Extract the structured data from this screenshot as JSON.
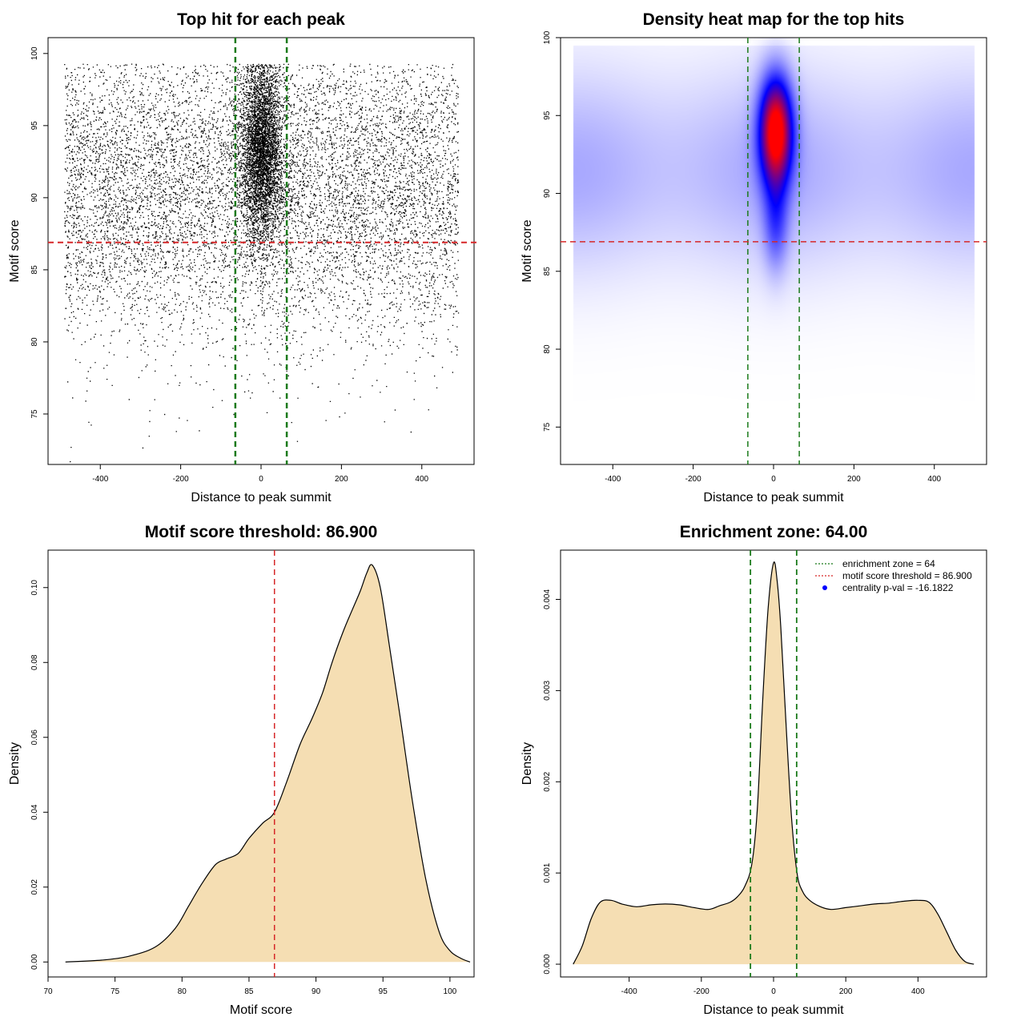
{
  "figure": {
    "colors": {
      "zone_line": "#1a7a1a",
      "threshold_line": "#d62728",
      "density_fill": "#f5deb3",
      "points": "#000000",
      "heat_low": "#ffffff",
      "heat_mid": "#0000ff",
      "heat_high": "#ff0000",
      "legend_point": "#0000ff"
    }
  },
  "chart_data": [
    {
      "id": "p1",
      "type": "scatter",
      "title": "Top hit for each peak",
      "xlabel": "Distance to peak summit",
      "ylabel": "Motif score",
      "xlim": [
        -530,
        530
      ],
      "ylim": [
        71.5,
        101.1
      ],
      "xticks": [
        -400,
        -200,
        0,
        200,
        400
      ],
      "yticks": [
        75,
        80,
        85,
        90,
        95,
        100
      ],
      "vlines": [
        -64,
        64
      ],
      "hline": 86.9,
      "point_distribution": {
        "background": {
          "count": 9000,
          "x_range": [
            -490,
            490
          ],
          "y_peak": 90.5,
          "y_sd": 5.2
        },
        "central": {
          "count": 4500,
          "x_center": 0,
          "x_sd": 26,
          "y_center": 93.2,
          "y_sd": 3.1
        }
      }
    },
    {
      "id": "p2",
      "type": "heatmap",
      "title": "Density heat map for the top hits",
      "xlabel": "Distance to peak summit",
      "ylabel": "Motif score",
      "xlim": [
        -530,
        530
      ],
      "ylim": [
        72.6,
        100
      ],
      "xticks": [
        -400,
        -200,
        0,
        200,
        400
      ],
      "yticks": [
        75,
        80,
        85,
        90,
        95,
        100
      ],
      "vlines": [
        -64,
        64
      ],
      "hline": 86.9,
      "hotspot": {
        "x": 5,
        "y": 94
      }
    },
    {
      "id": "p3",
      "type": "area",
      "title": "Motif score threshold: 86.900",
      "xlabel": "Motif score",
      "ylabel": "Density",
      "xlim": [
        70,
        101.8
      ],
      "ylim": [
        -0.004,
        0.11
      ],
      "xticks": [
        70,
        75,
        80,
        85,
        90,
        95,
        100
      ],
      "yticks": [
        0.0,
        0.02,
        0.04,
        0.06,
        0.08,
        0.1
      ],
      "ytick_labels": [
        "0.00",
        "0.02",
        "0.04",
        "0.06",
        "0.08",
        "0.10"
      ],
      "vline": 86.9,
      "x": [
        71.3,
        74.0,
        76.0,
        78.0,
        79.5,
        80.5,
        81.5,
        82.5,
        83.3,
        84.2,
        85.0,
        86.0,
        86.9,
        87.8,
        88.8,
        89.7,
        90.5,
        91.2,
        92.0,
        92.7,
        93.3,
        93.8,
        94.2,
        94.8,
        95.5,
        96.3,
        97.2,
        98.2,
        99.2,
        100.0,
        100.8,
        101.5
      ],
      "values": [
        0.0,
        0.0005,
        0.0015,
        0.004,
        0.009,
        0.015,
        0.021,
        0.026,
        0.0275,
        0.029,
        0.033,
        0.037,
        0.04,
        0.048,
        0.058,
        0.065,
        0.072,
        0.08,
        0.088,
        0.094,
        0.099,
        0.104,
        0.106,
        0.1,
        0.084,
        0.065,
        0.043,
        0.022,
        0.008,
        0.003,
        0.001,
        0.0
      ]
    },
    {
      "id": "p4",
      "type": "area",
      "title": "Enrichment zone: 64.00",
      "xlabel": "Distance to peak summit",
      "ylabel": "Density",
      "xlim": [
        -590,
        590
      ],
      "ylim": [
        -0.00014,
        0.00454
      ],
      "xticks": [
        -400,
        -200,
        0,
        200,
        400
      ],
      "yticks": [
        0.0,
        0.001,
        0.002,
        0.003,
        0.004
      ],
      "ytick_labels": [
        "0.000",
        "0.001",
        "0.002",
        "0.003",
        "0.004"
      ],
      "vlines": [
        -64,
        64
      ],
      "x": [
        -555,
        -530,
        -505,
        -480,
        -450,
        -420,
        -380,
        -340,
        -300,
        -260,
        -220,
        -180,
        -150,
        -120,
        -100,
        -80,
        -60,
        -45,
        -30,
        -15,
        0,
        10,
        20,
        35,
        50,
        65,
        80,
        100,
        130,
        160,
        200,
        240,
        280,
        320,
        360,
        400,
        430,
        455,
        480,
        505,
        530,
        555
      ],
      "values": [
        0.0,
        0.0002,
        0.0005,
        0.00068,
        0.0007,
        0.00066,
        0.00063,
        0.00065,
        0.00066,
        0.00065,
        0.00062,
        0.0006,
        0.00064,
        0.00068,
        0.00074,
        0.00085,
        0.0011,
        0.0017,
        0.0029,
        0.0039,
        0.0044,
        0.0042,
        0.0037,
        0.0026,
        0.0016,
        0.001,
        0.0008,
        0.0007,
        0.00063,
        0.0006,
        0.00062,
        0.00064,
        0.00066,
        0.00067,
        0.00069,
        0.0007,
        0.00068,
        0.00055,
        0.00035,
        0.00015,
        3e-05,
        0.0
      ],
      "legend": [
        {
          "kind": "line",
          "color": "zone_line",
          "label": "enrichment zone = 64"
        },
        {
          "kind": "line",
          "color": "threshold_line",
          "label": "motif score threshold = 86.900"
        },
        {
          "kind": "point",
          "color": "legend_point",
          "label": "centrality p-val = -16.1822"
        }
      ]
    }
  ]
}
